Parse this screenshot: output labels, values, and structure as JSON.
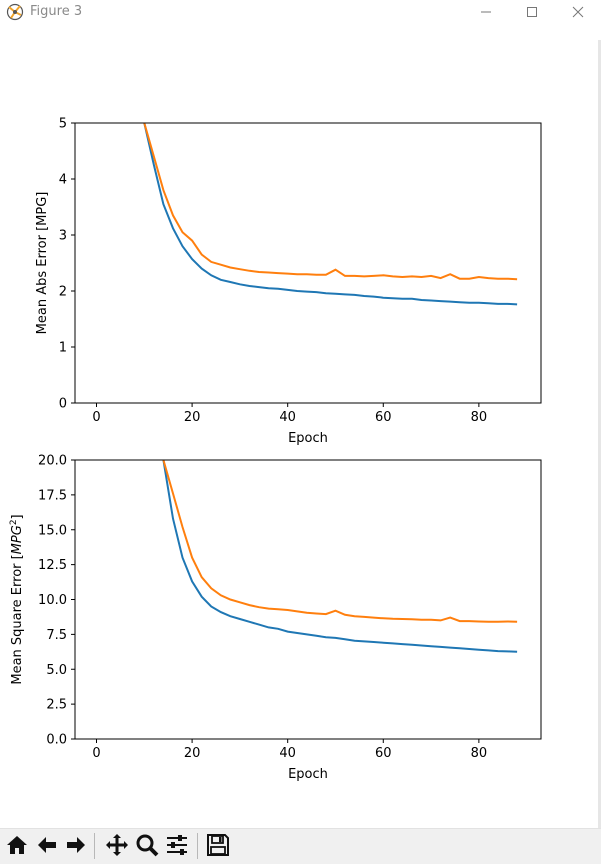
{
  "window": {
    "title": "Figure 3",
    "minimize_icon": "minimize-icon",
    "maximize_icon": "maximize-icon",
    "close_icon": "close-icon"
  },
  "toolbar": {
    "buttons": [
      "home-icon",
      "back-arrow-icon",
      "forward-arrow-icon",
      "pan-icon",
      "zoom-icon",
      "configure-subplots-icon",
      "save-icon"
    ]
  },
  "status_text": "",
  "colors": {
    "train": "#1f77b4",
    "val": "#ff7f0e"
  },
  "chart_data": [
    {
      "type": "line",
      "xlabel": "Epoch",
      "ylabel": "Mean Abs Error [MPG]",
      "xlim": [
        -4.5,
        93
      ],
      "ylim": [
        0,
        5
      ],
      "xticks": [
        0,
        20,
        40,
        60,
        80
      ],
      "yticks": [
        0,
        1,
        2,
        3,
        4,
        5
      ],
      "ytick_labels": [
        "0",
        "1",
        "2",
        "3",
        "4",
        "5"
      ],
      "grid": false,
      "series": [
        {
          "color": "#1f77b4",
          "x": [
            10,
            12,
            14,
            16,
            18,
            20,
            22,
            24,
            26,
            28,
            30,
            32,
            34,
            36,
            38,
            40,
            42,
            44,
            46,
            48,
            50,
            52,
            54,
            56,
            58,
            60,
            62,
            64,
            66,
            68,
            70,
            72,
            74,
            76,
            78,
            80,
            82,
            84,
            86,
            88
          ],
          "values": [
            5.0,
            4.25,
            3.55,
            3.12,
            2.8,
            2.57,
            2.4,
            2.28,
            2.2,
            2.16,
            2.12,
            2.09,
            2.07,
            2.05,
            2.04,
            2.02,
            2.0,
            1.99,
            1.98,
            1.96,
            1.95,
            1.94,
            1.93,
            1.91,
            1.9,
            1.88,
            1.87,
            1.86,
            1.86,
            1.84,
            1.83,
            1.82,
            1.81,
            1.8,
            1.79,
            1.79,
            1.78,
            1.77,
            1.77,
            1.76
          ]
        },
        {
          "color": "#ff7f0e",
          "x": [
            10,
            12,
            14,
            16,
            18,
            20,
            22,
            24,
            26,
            28,
            30,
            32,
            34,
            36,
            38,
            40,
            42,
            44,
            46,
            48,
            50,
            52,
            54,
            56,
            58,
            60,
            62,
            64,
            66,
            68,
            70,
            72,
            74,
            76,
            78,
            80,
            82,
            84,
            86,
            88
          ],
          "values": [
            5.0,
            4.4,
            3.8,
            3.35,
            3.05,
            2.9,
            2.65,
            2.52,
            2.47,
            2.42,
            2.39,
            2.36,
            2.34,
            2.33,
            2.32,
            2.31,
            2.3,
            2.3,
            2.29,
            2.29,
            2.38,
            2.27,
            2.27,
            2.26,
            2.27,
            2.28,
            2.26,
            2.25,
            2.26,
            2.25,
            2.27,
            2.23,
            2.3,
            2.22,
            2.22,
            2.25,
            2.23,
            2.22,
            2.22,
            2.21
          ]
        }
      ]
    },
    {
      "type": "line",
      "xlabel": "Epoch",
      "ylabel_prefix": "Mean Square Error [",
      "ylabel_italic": "MPG",
      "ylabel_sup": "2",
      "ylabel_suffix": "]",
      "xlim": [
        -4.5,
        93
      ],
      "ylim": [
        0,
        20
      ],
      "xticks": [
        0,
        20,
        40,
        60,
        80
      ],
      "yticks": [
        0,
        2.5,
        5,
        7.5,
        10,
        12.5,
        15,
        17.5,
        20
      ],
      "ytick_labels": [
        "0.0",
        "2.5",
        "5.0",
        "7.5",
        "10.0",
        "12.5",
        "15.0",
        "17.5",
        "20.0"
      ],
      "grid": false,
      "series": [
        {
          "color": "#1f77b4",
          "x": [
            14,
            16,
            18,
            20,
            22,
            24,
            26,
            28,
            30,
            32,
            34,
            36,
            38,
            40,
            42,
            44,
            46,
            48,
            50,
            52,
            54,
            56,
            58,
            60,
            62,
            64,
            66,
            68,
            70,
            72,
            74,
            76,
            78,
            80,
            82,
            84,
            86,
            88
          ],
          "values": [
            20.0,
            15.8,
            13.0,
            11.3,
            10.2,
            9.5,
            9.1,
            8.8,
            8.6,
            8.4,
            8.2,
            8.0,
            7.9,
            7.7,
            7.6,
            7.5,
            7.4,
            7.3,
            7.25,
            7.15,
            7.05,
            7.0,
            6.95,
            6.9,
            6.85,
            6.8,
            6.75,
            6.7,
            6.65,
            6.6,
            6.55,
            6.5,
            6.45,
            6.4,
            6.35,
            6.3,
            6.28,
            6.25
          ]
        },
        {
          "color": "#ff7f0e",
          "x": [
            14,
            16,
            18,
            20,
            22,
            24,
            26,
            28,
            30,
            32,
            34,
            36,
            38,
            40,
            42,
            44,
            46,
            48,
            50,
            52,
            54,
            56,
            58,
            60,
            62,
            64,
            66,
            68,
            70,
            72,
            74,
            76,
            78,
            80,
            82,
            84,
            86,
            88
          ],
          "values": [
            20.0,
            17.6,
            15.2,
            13.0,
            11.6,
            10.8,
            10.3,
            10.0,
            9.8,
            9.6,
            9.45,
            9.35,
            9.3,
            9.25,
            9.15,
            9.05,
            9.0,
            8.95,
            9.2,
            8.9,
            8.8,
            8.75,
            8.7,
            8.65,
            8.62,
            8.6,
            8.58,
            8.55,
            8.55,
            8.5,
            8.7,
            8.45,
            8.45,
            8.42,
            8.4,
            8.4,
            8.42,
            8.4
          ]
        }
      ]
    }
  ]
}
